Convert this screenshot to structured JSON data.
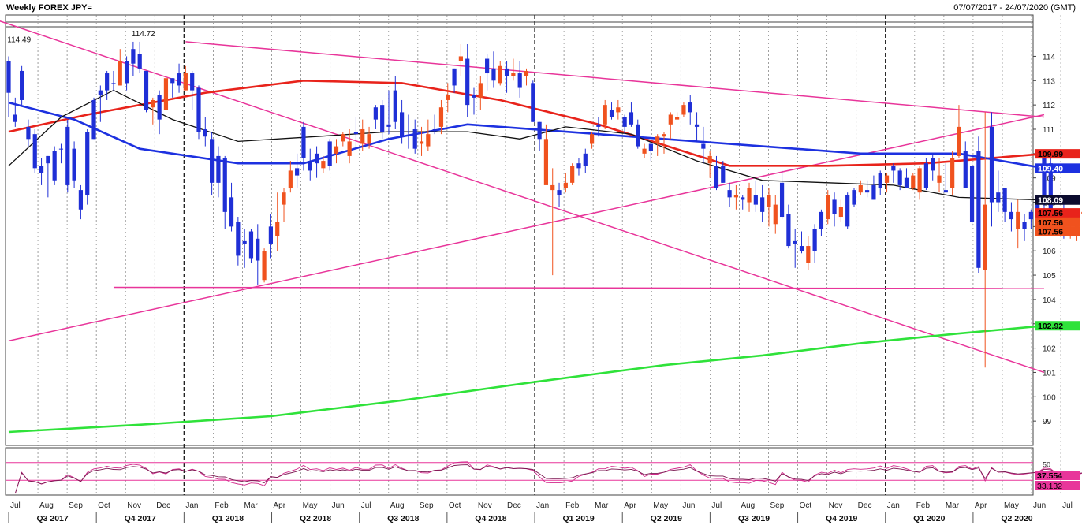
{
  "header": {
    "title": "Weekly FOREX JPY=",
    "date_range": "07/07/2017 - 24/07/2020 (GMT)"
  },
  "colors": {
    "bull": "#1f2fd6",
    "bear": "#f0521e",
    "ma_red": "#e8231b",
    "ma_blue": "#1d31e0",
    "ma_black": "#111111",
    "ma_green": "#2fe23a",
    "trend_pink": "#e8359a",
    "rsi_line": "#e8359a"
  },
  "chart_data": {
    "type": "candlestick",
    "ylim": [
      98,
      115.7
    ],
    "y_ticks": [
      99,
      100,
      101,
      102,
      103,
      104,
      105,
      106,
      107,
      108,
      109,
      110,
      111,
      112,
      113,
      114
    ],
    "x_months": [
      "Jul",
      "Aug",
      "Sep",
      "Oct",
      "Nov",
      "Dec",
      "Jan",
      "Feb",
      "Mar",
      "Apr",
      "May",
      "Jun",
      "Jul",
      "Aug",
      "Sep",
      "Oct",
      "Nov",
      "Dec",
      "Jan",
      "Feb",
      "Mar",
      "Apr",
      "May",
      "Jun",
      "Jul",
      "Aug",
      "Sep",
      "Oct",
      "Nov",
      "Dec",
      "Jan",
      "Feb",
      "Mar",
      "Apr",
      "May",
      "Jun",
      "Jul"
    ],
    "quarters": [
      "Q3 2017",
      "Q4 2017",
      "Q1 2018",
      "Q2 2018",
      "Q3 2018",
      "Q4 2018",
      "Q1 2019",
      "Q2 2019",
      "Q3 2019",
      "Q4 2019",
      "Q1 2020",
      "Q2 2020"
    ],
    "price_annotations": [
      {
        "label": "114.49",
        "value": 114.49,
        "week": 1
      },
      {
        "label": "114.72",
        "value": 114.72,
        "week": 19
      }
    ],
    "moving_averages": [
      {
        "color_key": "ma_red",
        "points": [
          [
            0,
            110.9
          ],
          [
            12,
            111.6
          ],
          [
            30,
            112.5
          ],
          [
            45,
            113.0
          ],
          [
            60,
            112.9
          ],
          [
            75,
            112.2
          ],
          [
            90,
            111.2
          ],
          [
            110,
            109.5
          ],
          [
            125,
            109.5
          ],
          [
            140,
            109.6
          ],
          [
            158,
            109.99
          ]
        ],
        "last": "109.99"
      },
      {
        "color_key": "ma_blue",
        "points": [
          [
            0,
            112.1
          ],
          [
            10,
            111.4
          ],
          [
            20,
            110.2
          ],
          [
            35,
            109.6
          ],
          [
            45,
            109.6
          ],
          [
            58,
            110.6
          ],
          [
            70,
            111.2
          ],
          [
            85,
            110.9
          ],
          [
            100,
            110.6
          ],
          [
            115,
            110.3
          ],
          [
            130,
            110.0
          ],
          [
            145,
            110.0
          ],
          [
            158,
            109.4
          ]
        ],
        "last": "109.40"
      },
      {
        "color_key": "ma_black",
        "points": [
          [
            0,
            109.5
          ],
          [
            8,
            111.5
          ],
          [
            16,
            112.6
          ],
          [
            25,
            111.4
          ],
          [
            35,
            110.5
          ],
          [
            47,
            110.7
          ],
          [
            58,
            110.9
          ],
          [
            70,
            110.9
          ],
          [
            78,
            110.6
          ],
          [
            85,
            111.1
          ],
          [
            95,
            110.8
          ],
          [
            105,
            109.7
          ],
          [
            115,
            108.9
          ],
          [
            125,
            108.8
          ],
          [
            135,
            108.7
          ],
          [
            145,
            108.2
          ],
          [
            158,
            108.09
          ]
        ],
        "last": "108.09"
      },
      {
        "color_key": "ma_green",
        "points": [
          [
            0,
            98.55
          ],
          [
            20,
            98.85
          ],
          [
            40,
            99.2
          ],
          [
            60,
            99.85
          ],
          [
            80,
            100.6
          ],
          [
            100,
            101.3
          ],
          [
            115,
            101.7
          ],
          [
            130,
            102.2
          ],
          [
            145,
            102.6
          ],
          [
            158,
            102.92
          ]
        ],
        "last": "102.92"
      }
    ],
    "trendlines": [
      [
        [
          -3,
          115.6
        ],
        [
          158,
          101.0
        ]
      ],
      [
        [
          27,
          114.6
        ],
        [
          158,
          111.5
        ]
      ],
      [
        [
          0,
          102.3
        ],
        [
          158,
          111.6
        ]
      ],
      [
        [
          16,
          104.5
        ],
        [
          158,
          104.45
        ]
      ]
    ],
    "last_prices": [
      {
        "label": "107.56",
        "value": 107.56,
        "style": "bear"
      },
      {
        "label": "107.56",
        "value": 107.18,
        "style": "bear"
      },
      {
        "label": "107.56",
        "value": 106.8,
        "style": "bear"
      }
    ],
    "candles": [
      [
        114.0,
        111.5,
        112.5,
        113.8
      ],
      [
        112.3,
        111.1,
        111.3,
        111.6
      ],
      [
        113.6,
        112.0,
        112.2,
        113.4
      ],
      [
        111.4,
        110.3,
        110.6,
        111.1
      ],
      [
        111.0,
        109.2,
        109.4,
        110.8
      ],
      [
        109.8,
        108.7,
        109.2,
        109.5
      ],
      [
        109.9,
        108.2,
        109.6,
        109.9
      ],
      [
        110.3,
        108.7,
        108.9,
        110.1
      ],
      [
        110.4,
        109.6,
        110.2,
        110.2
      ],
      [
        111.4,
        108.4,
        108.7,
        111.1
      ],
      [
        110.5,
        108.6,
        108.9,
        110.2
      ],
      [
        108.7,
        107.3,
        107.7,
        108.5
      ],
      [
        111.0,
        107.9,
        108.3,
        110.9
      ],
      [
        112.3,
        110.6,
        110.6,
        112.2
      ],
      [
        112.8,
        111.3,
        112.4,
        112.6
      ],
      [
        113.4,
        112.2,
        112.6,
        113.3
      ],
      [
        113.4,
        112.6,
        112.9,
        112.9
      ],
      [
        114.3,
        112.8,
        113.8,
        112.8
      ],
      [
        114.0,
        112.6,
        112.9,
        113.8
      ],
      [
        114.6,
        113.2,
        113.7,
        114.3
      ],
      [
        114.6,
        113.3,
        113.5,
        114.1
      ],
      [
        113.4,
        111.7,
        111.8,
        113.4
      ],
      [
        112.3,
        111.2,
        112.2,
        111.9
      ],
      [
        112.6,
        110.8,
        111.4,
        112.4
      ],
      [
        113.2,
        111.9,
        113.1,
        111.8
      ],
      [
        113.1,
        112.3,
        112.9,
        113.1
      ],
      [
        113.7,
        112.5,
        112.8,
        113.3
      ],
      [
        113.6,
        112.6,
        113.3,
        112.6
      ],
      [
        113.4,
        111.8,
        112.6,
        113.3
      ],
      [
        112.8,
        110.6,
        110.9,
        112.7
      ],
      [
        111.5,
        110.3,
        110.7,
        111.0
      ],
      [
        110.9,
        108.3,
        108.8,
        110.6
      ],
      [
        110.3,
        108.2,
        108.8,
        109.9
      ],
      [
        109.9,
        106.9,
        107.6,
        109.8
      ],
      [
        108.8,
        106.8,
        107.0,
        108.2
      ],
      [
        107.4,
        105.4,
        105.8,
        107.2
      ],
      [
        106.9,
        105.3,
        106.3,
        106.4
      ],
      [
        106.9,
        105.5,
        105.7,
        106.8
      ],
      [
        107.1,
        104.6,
        105.6,
        106.5
      ],
      [
        106.1,
        104.7,
        106.0,
        104.8
      ],
      [
        107.5,
        105.7,
        106.3,
        107.0
      ],
      [
        108.4,
        106.0,
        107.2,
        106.6
      ],
      [
        108.6,
        107.2,
        108.4,
        107.9
      ],
      [
        109.7,
        108.4,
        109.3,
        108.6
      ],
      [
        110.0,
        108.6,
        109.1,
        109.4
      ],
      [
        111.3,
        109.3,
        109.8,
        111.1
      ],
      [
        110.2,
        108.9,
        109.3,
        109.7
      ],
      [
        110.3,
        109.0,
        109.6,
        110.0
      ],
      [
        109.9,
        109.2,
        109.7,
        109.4
      ],
      [
        110.6,
        109.3,
        109.5,
        110.5
      ],
      [
        110.6,
        109.6,
        110.3,
        110.0
      ],
      [
        110.9,
        110.3,
        110.8,
        110.5
      ],
      [
        111.0,
        109.6,
        110.5,
        109.9
      ],
      [
        111.5,
        110.2,
        110.8,
        110.9
      ],
      [
        111.4,
        110.1,
        111.0,
        110.4
      ],
      [
        111.1,
        110.2,
        110.8,
        110.4
      ],
      [
        112.0,
        111.0,
        111.4,
        111.9
      ],
      [
        112.2,
        110.6,
        110.9,
        112.0
      ],
      [
        112.6,
        110.8,
        111.1,
        111.2
      ],
      [
        113.2,
        111.0,
        111.3,
        112.6
      ],
      [
        112.2,
        110.4,
        110.7,
        111.7
      ],
      [
        111.6,
        110.2,
        110.9,
        110.9
      ],
      [
        111.4,
        110.0,
        110.2,
        111.0
      ],
      [
        111.1,
        109.9,
        110.5,
        110.4
      ],
      [
        111.4,
        110.1,
        110.8,
        110.3
      ],
      [
        111.6,
        110.8,
        111.0,
        111.0
      ],
      [
        112.2,
        110.8,
        111.9,
        111.1
      ],
      [
        112.9,
        111.7,
        112.4,
        112.2
      ],
      [
        113.5,
        112.5,
        112.8,
        113.5
      ],
      [
        114.5,
        113.2,
        114.0,
        113.8
      ],
      [
        114.5,
        111.5,
        112.0,
        113.9
      ],
      [
        112.7,
        111.6,
        112.3,
        112.4
      ],
      [
        113.2,
        111.8,
        112.9,
        112.3
      ],
      [
        114.1,
        112.6,
        113.3,
        113.9
      ],
      [
        114.2,
        112.7,
        113.0,
        113.5
      ],
      [
        113.8,
        112.8,
        113.6,
        112.9
      ],
      [
        113.8,
        112.5,
        113.2,
        113.5
      ],
      [
        113.9,
        113.0,
        113.3,
        113.2
      ],
      [
        113.8,
        112.3,
        112.7,
        113.3
      ],
      [
        113.5,
        112.8,
        113.4,
        113.2
      ],
      [
        113.0,
        111.3,
        111.3,
        112.9
      ],
      [
        111.3,
        110.1,
        110.6,
        111.3
      ],
      [
        111.2,
        109.5,
        110.6,
        108.7
      ],
      [
        109.4,
        105.0,
        108.7,
        108.5
      ],
      [
        108.8,
        107.8,
        108.3,
        108.5
      ],
      [
        109.2,
        108.4,
        108.8,
        108.6
      ],
      [
        109.6,
        108.7,
        109.5,
        108.8
      ],
      [
        109.8,
        109.1,
        109.4,
        109.6
      ],
      [
        110.2,
        109.2,
        109.5,
        110.0
      ],
      [
        110.9,
        110.2,
        110.8,
        110.4
      ],
      [
        111.5,
        110.7,
        111.1,
        111.2
      ],
      [
        112.2,
        111.0,
        112.0,
        111.2
      ],
      [
        112.1,
        111.4,
        111.5,
        111.8
      ],
      [
        112.2,
        111.4,
        111.9,
        111.7
      ],
      [
        111.6,
        110.8,
        111.1,
        111.5
      ],
      [
        112.1,
        111.1,
        111.2,
        111.7
      ],
      [
        111.4,
        110.2,
        110.3,
        111.2
      ],
      [
        110.4,
        109.8,
        110.2,
        110.0
      ],
      [
        110.5,
        109.7,
        110.1,
        110.4
      ],
      [
        110.8,
        109.9,
        110.7,
        110.4
      ],
      [
        110.9,
        110.0,
        110.8,
        110.7
      ],
      [
        111.7,
        110.6,
        111.6,
        111.2
      ],
      [
        111.7,
        111.4,
        111.5,
        111.4
      ],
      [
        112.1,
        111.5,
        112.0,
        111.6
      ],
      [
        112.4,
        111.2,
        111.7,
        112.1
      ],
      [
        111.7,
        110.5,
        111.1,
        111.2
      ],
      [
        111.1,
        109.6,
        110.2,
        110.4
      ],
      [
        110.1,
        109.0,
        109.9,
        109.6
      ],
      [
        109.9,
        108.5,
        108.6,
        109.5
      ],
      [
        109.7,
        108.8,
        108.8,
        109.5
      ],
      [
        108.8,
        107.8,
        108.2,
        108.5
      ],
      [
        108.7,
        107.7,
        108.3,
        108.2
      ],
      [
        108.3,
        107.7,
        108.1,
        108.2
      ],
      [
        108.8,
        107.6,
        108.6,
        108.0
      ],
      [
        108.9,
        107.6,
        107.9,
        108.3
      ],
      [
        108.7,
        107.2,
        107.6,
        108.2
      ],
      [
        108.6,
        107.0,
        108.3,
        107.8
      ],
      [
        108.3,
        106.7,
        107.9,
        107.1
      ],
      [
        109.3,
        107.3,
        107.4,
        108.8
      ],
      [
        107.9,
        106.1,
        106.2,
        107.5
      ],
      [
        106.9,
        105.3,
        106.3,
        106.4
      ],
      [
        106.8,
        105.9,
        106.0,
        106.2
      ],
      [
        106.6,
        105.2,
        106.2,
        105.5
      ],
      [
        107.1,
        105.5,
        106.0,
        106.9
      ],
      [
        107.7,
        106.6,
        106.9,
        107.6
      ],
      [
        108.5,
        107.1,
        108.3,
        107.3
      ],
      [
        108.4,
        107.0,
        107.5,
        108.1
      ],
      [
        108.1,
        107.2,
        107.8,
        107.4
      ],
      [
        108.4,
        106.9,
        107.0,
        108.3
      ],
      [
        108.6,
        107.8,
        107.9,
        108.5
      ],
      [
        108.9,
        108.3,
        108.7,
        108.4
      ],
      [
        108.9,
        108.2,
        108.4,
        108.5
      ],
      [
        109.1,
        108.1,
        108.1,
        108.7
      ],
      [
        109.3,
        108.3,
        108.6,
        109.2
      ],
      [
        109.2,
        108.4,
        109.1,
        108.8
      ],
      [
        109.6,
        108.8,
        109.3,
        109.5
      ],
      [
        109.4,
        108.5,
        108.7,
        109.3
      ],
      [
        109.4,
        108.6,
        108.6,
        109.0
      ],
      [
        109.2,
        108.5,
        109.1,
        108.6
      ],
      [
        109.5,
        108.1,
        109.4,
        108.4
      ],
      [
        109.8,
        108.5,
        108.6,
        109.6
      ],
      [
        110.0,
        108.9,
        109.3,
        109.8
      ],
      [
        109.8,
        108.4,
        109.1,
        108.8
      ],
      [
        109.6,
        108.5,
        108.4,
        108.5
      ],
      [
        110.1,
        108.3,
        109.8,
        108.6
      ],
      [
        112.0,
        109.8,
        111.1,
        109.9
      ],
      [
        110.5,
        108.6,
        108.6,
        110.1
      ],
      [
        109.9,
        107.0,
        107.2,
        109.5
      ],
      [
        110.7,
        105.1,
        105.3,
        110.1
      ],
      [
        111.7,
        101.2,
        107.9,
        105.2
      ],
      [
        111.7,
        107.0,
        108.0,
        111.1
      ],
      [
        109.3,
        107.6,
        108.0,
        108.4
      ],
      [
        108.6,
        107.2,
        107.6,
        108.6
      ],
      [
        108.0,
        106.8,
        107.3,
        107.6
      ],
      [
        108.1,
        106.1,
        107.6,
        106.9
      ],
      [
        107.5,
        106.4,
        106.9,
        107.2
      ],
      [
        107.7,
        106.9,
        107.3,
        107.6
      ],
      [
        108.0,
        107.3,
        107.6,
        107.9
      ],
      [
        109.9,
        107.5,
        108.0,
        109.9
      ],
      [
        109.8,
        106.9,
        107.1,
        109.6
      ],
      [
        107.7,
        106.6,
        107.0,
        107.3
      ],
      [
        108.2,
        106.5,
        106.9,
        107.5
      ],
      [
        107.6,
        106.5,
        107.5,
        107.0
      ],
      [
        107.5,
        106.4,
        107.2,
        106.9
      ],
      [
        107.6,
        106.9,
        107.6,
        107.5
      ]
    ],
    "rsi": {
      "ticks": [
        "50"
      ],
      "last_labels": [
        "37.554",
        "33.132"
      ],
      "upper": 70,
      "lower": 30
    }
  }
}
